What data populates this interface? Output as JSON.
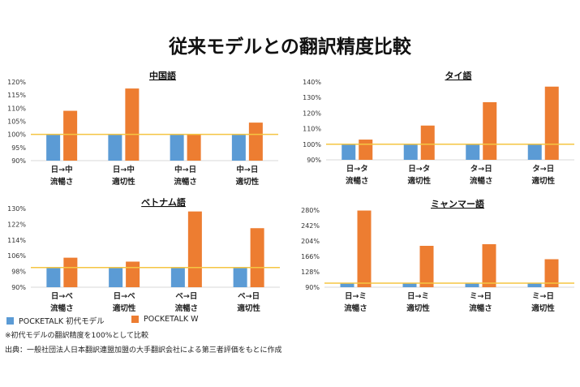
{
  "title": "従来モデルとの翻訳精度比較",
  "legend": [
    {
      "label": "POCKETALK 初代モデル",
      "color": "#5b9bd5"
    },
    {
      "label": "POCKETALK W",
      "color": "#ed7d31"
    }
  ],
  "notes": {
    "baseline": "※初代モデルの翻訳精度を100%として比較",
    "source": "出典：一般社団法人日本翻訳連盟加盟の大手翻訳会社による第三者評価をもとに作成"
  },
  "reference_line": {
    "value": 100,
    "color": "#f5c542"
  },
  "chart_data": [
    {
      "type": "bar",
      "title": "中国語",
      "ylim": [
        90,
        120
      ],
      "yticks": [
        "90%",
        "95%",
        "100%",
        "105%",
        "110%",
        "115%",
        "120%"
      ],
      "ytick_values": [
        90,
        95,
        100,
        105,
        110,
        115,
        120
      ],
      "categories": [
        [
          "日→中",
          "流暢さ"
        ],
        [
          "日→中",
          "適切性"
        ],
        [
          "中→日",
          "流暢さ"
        ],
        [
          "中→日",
          "適切性"
        ]
      ],
      "series": [
        {
          "name": "POCKETALK 初代モデル",
          "values": [
            100,
            100,
            100,
            100
          ]
        },
        {
          "name": "POCKETALK W",
          "values": [
            109,
            117.5,
            100,
            104.5
          ]
        }
      ]
    },
    {
      "type": "bar",
      "title": "タイ語",
      "ylim": [
        90,
        140
      ],
      "yticks": [
        "90%",
        "100%",
        "110%",
        "120%",
        "130%",
        "140%"
      ],
      "ytick_values": [
        90,
        100,
        110,
        120,
        130,
        140
      ],
      "categories": [
        [
          "日→タ",
          "流暢さ"
        ],
        [
          "日→タ",
          "適切性"
        ],
        [
          "タ→日",
          "流暢さ"
        ],
        [
          "タ→日",
          "適切性"
        ]
      ],
      "series": [
        {
          "name": "POCKETALK 初代モデル",
          "values": [
            100,
            100,
            100,
            100
          ]
        },
        {
          "name": "POCKETALK W",
          "values": [
            103,
            112,
            127,
            137
          ]
        }
      ]
    },
    {
      "type": "bar",
      "title": "ベトナム語",
      "ylim": [
        90,
        130
      ],
      "yticks": [
        "90%",
        "98%",
        "106%",
        "114%",
        "122%",
        "130%"
      ],
      "ytick_values": [
        90,
        98,
        106,
        114,
        122,
        130
      ],
      "categories": [
        [
          "日→ベ",
          "流暢さ"
        ],
        [
          "日→ベ",
          "適切性"
        ],
        [
          "ベ→日",
          "流暢さ"
        ],
        [
          "ベ→日",
          "適切性"
        ]
      ],
      "series": [
        {
          "name": "POCKETALK 初代モデル",
          "values": [
            100,
            100,
            100,
            100
          ]
        },
        {
          "name": "POCKETALK W",
          "values": [
            105,
            103,
            128.5,
            120
          ]
        }
      ]
    },
    {
      "type": "bar",
      "title": "ミャンマー語",
      "ylim": [
        90,
        280
      ],
      "yticks": [
        "90%",
        "128%",
        "166%",
        "204%",
        "242%",
        "280%"
      ],
      "ytick_values": [
        90,
        128,
        166,
        204,
        242,
        280
      ],
      "categories": [
        [
          "日→ミ",
          "流暢さ"
        ],
        [
          "日→ミ",
          "適切性"
        ],
        [
          "ミ→日",
          "流暢さ"
        ],
        [
          "ミ→日",
          "適切性"
        ]
      ],
      "series": [
        {
          "name": "POCKETALK 初代モデル",
          "values": [
            100,
            100,
            100,
            100
          ]
        },
        {
          "name": "POCKETALK W",
          "values": [
            279,
            192,
            196,
            159
          ]
        }
      ]
    }
  ]
}
